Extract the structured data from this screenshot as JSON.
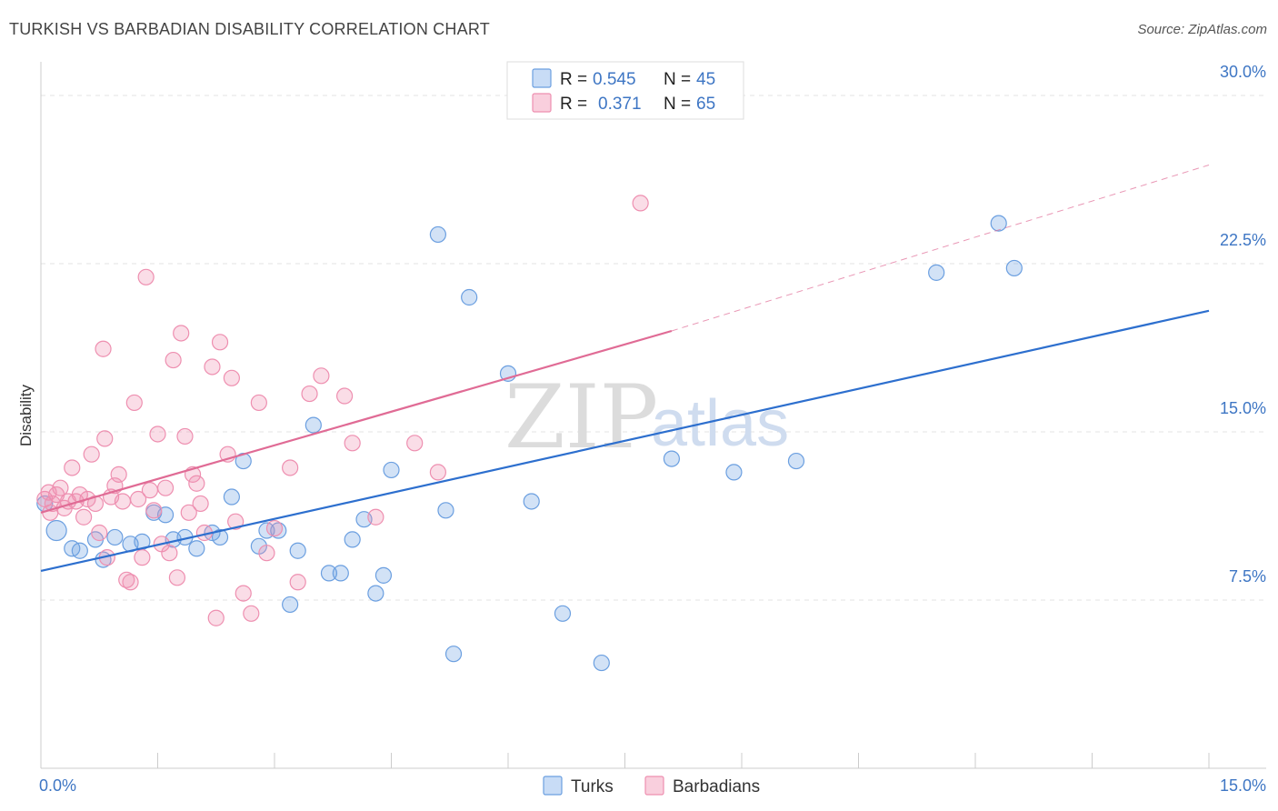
{
  "title": "TURKISH VS BARBADIAN DISABILITY CORRELATION CHART",
  "source": "Source: ZipAtlas.com",
  "watermark": {
    "zip": "ZIP",
    "atlas": "atlas"
  },
  "colors": {
    "turks": "#6b9fe0",
    "turks_line": "#2d6fce",
    "barbadians": "#ee8fb0",
    "barbadians_line": "#e06b95",
    "tick": "#3e76c4",
    "grid": "#e3e3e3"
  },
  "legend": {
    "row1": {
      "r_label": "R =",
      "r_value": "0.545",
      "n_label": "N =",
      "n_value": "45"
    },
    "row2": {
      "r_label": "R =",
      "r_value": "0.371",
      "n_label": "N =",
      "n_value": "65"
    }
  },
  "bottom_legend": {
    "turks": "Turks",
    "barbadians": "Barbadians"
  },
  "chart_data": {
    "type": "scatter",
    "xlabel": "",
    "ylabel": "Disability",
    "xlim": [
      0,
      15
    ],
    "ylim": [
      0,
      31.5
    ],
    "x_tick_labels": [
      "0.0%",
      "15.0%"
    ],
    "y_ticks": [
      7.5,
      15.0,
      22.5,
      30.0
    ],
    "y_tick_labels": [
      "7.5%",
      "15.0%",
      "22.5%",
      "30.0%"
    ],
    "grid": true,
    "legend_position": "top-center",
    "series": [
      {
        "name": "Turks",
        "r": 0.545,
        "n": 45,
        "trend": {
          "x": [
            0,
            15
          ],
          "y": [
            8.8,
            20.4
          ]
        },
        "points": [
          [
            0.2,
            10.6
          ],
          [
            0.4,
            9.8
          ],
          [
            0.5,
            9.7
          ],
          [
            0.7,
            10.2
          ],
          [
            0.8,
            9.3
          ],
          [
            0.95,
            10.3
          ],
          [
            1.15,
            10.0
          ],
          [
            1.3,
            10.1
          ],
          [
            1.45,
            11.4
          ],
          [
            1.6,
            11.3
          ],
          [
            1.7,
            10.2
          ],
          [
            1.85,
            10.3
          ],
          [
            2.0,
            9.8
          ],
          [
            2.2,
            10.5
          ],
          [
            2.3,
            10.3
          ],
          [
            2.45,
            12.1
          ],
          [
            2.6,
            13.7
          ],
          [
            2.8,
            9.9
          ],
          [
            2.9,
            10.6
          ],
          [
            3.05,
            10.6
          ],
          [
            3.2,
            7.3
          ],
          [
            3.3,
            9.7
          ],
          [
            3.5,
            15.3
          ],
          [
            3.7,
            8.7
          ],
          [
            3.85,
            8.7
          ],
          [
            4.0,
            10.2
          ],
          [
            4.15,
            11.1
          ],
          [
            4.3,
            7.8
          ],
          [
            4.4,
            8.6
          ],
          [
            4.5,
            13.3
          ],
          [
            5.1,
            23.8
          ],
          [
            5.2,
            11.5
          ],
          [
            5.3,
            5.1
          ],
          [
            5.5,
            21.0
          ],
          [
            6.0,
            17.6
          ],
          [
            6.3,
            11.9
          ],
          [
            6.7,
            6.9
          ],
          [
            7.2,
            4.7
          ],
          [
            8.1,
            13.8
          ],
          [
            8.9,
            13.2
          ],
          [
            9.7,
            13.7
          ],
          [
            11.5,
            22.1
          ],
          [
            12.3,
            24.3
          ],
          [
            12.5,
            22.3
          ],
          [
            0.05,
            11.8
          ]
        ]
      },
      {
        "name": "Barbadians",
        "r": 0.371,
        "n": 65,
        "trend": {
          "x": [
            0,
            8.1
          ],
          "y": [
            11.4,
            19.5
          ]
        },
        "trend_extension": {
          "x": [
            8.1,
            15
          ],
          "y": [
            19.5,
            26.9
          ]
        },
        "points": [
          [
            0.05,
            12.0
          ],
          [
            0.1,
            12.3
          ],
          [
            0.15,
            11.8
          ],
          [
            0.2,
            12.2
          ],
          [
            0.25,
            12.5
          ],
          [
            0.3,
            11.6
          ],
          [
            0.35,
            11.9
          ],
          [
            0.4,
            13.4
          ],
          [
            0.45,
            11.9
          ],
          [
            0.5,
            12.2
          ],
          [
            0.55,
            11.2
          ],
          [
            0.6,
            12.0
          ],
          [
            0.65,
            14.0
          ],
          [
            0.7,
            11.8
          ],
          [
            0.75,
            10.5
          ],
          [
            0.8,
            18.7
          ],
          [
            0.82,
            14.7
          ],
          [
            0.85,
            9.4
          ],
          [
            0.9,
            12.1
          ],
          [
            0.95,
            12.6
          ],
          [
            1.0,
            13.1
          ],
          [
            1.05,
            11.9
          ],
          [
            1.1,
            8.4
          ],
          [
            1.15,
            8.3
          ],
          [
            1.2,
            16.3
          ],
          [
            1.25,
            12.0
          ],
          [
            1.3,
            9.4
          ],
          [
            1.35,
            21.9
          ],
          [
            1.4,
            12.4
          ],
          [
            1.45,
            11.5
          ],
          [
            1.5,
            14.9
          ],
          [
            1.55,
            10.0
          ],
          [
            1.6,
            12.5
          ],
          [
            1.65,
            9.6
          ],
          [
            1.7,
            18.2
          ],
          [
            1.75,
            8.5
          ],
          [
            1.8,
            19.4
          ],
          [
            1.85,
            14.8
          ],
          [
            1.9,
            11.4
          ],
          [
            1.95,
            13.1
          ],
          [
            2.0,
            12.7
          ],
          [
            2.05,
            11.8
          ],
          [
            2.1,
            10.5
          ],
          [
            2.2,
            17.9
          ],
          [
            2.25,
            6.7
          ],
          [
            2.3,
            19.0
          ],
          [
            2.4,
            14.0
          ],
          [
            2.45,
            17.4
          ],
          [
            2.5,
            11.0
          ],
          [
            2.6,
            7.8
          ],
          [
            2.7,
            6.9
          ],
          [
            2.8,
            16.3
          ],
          [
            2.9,
            9.6
          ],
          [
            3.0,
            10.7
          ],
          [
            3.2,
            13.4
          ],
          [
            3.3,
            8.3
          ],
          [
            3.45,
            16.7
          ],
          [
            3.6,
            17.5
          ],
          [
            3.9,
            16.6
          ],
          [
            4.0,
            14.5
          ],
          [
            4.3,
            11.2
          ],
          [
            4.8,
            14.5
          ],
          [
            5.1,
            13.2
          ],
          [
            7.7,
            25.2
          ],
          [
            0.12,
            11.4
          ]
        ]
      }
    ]
  }
}
